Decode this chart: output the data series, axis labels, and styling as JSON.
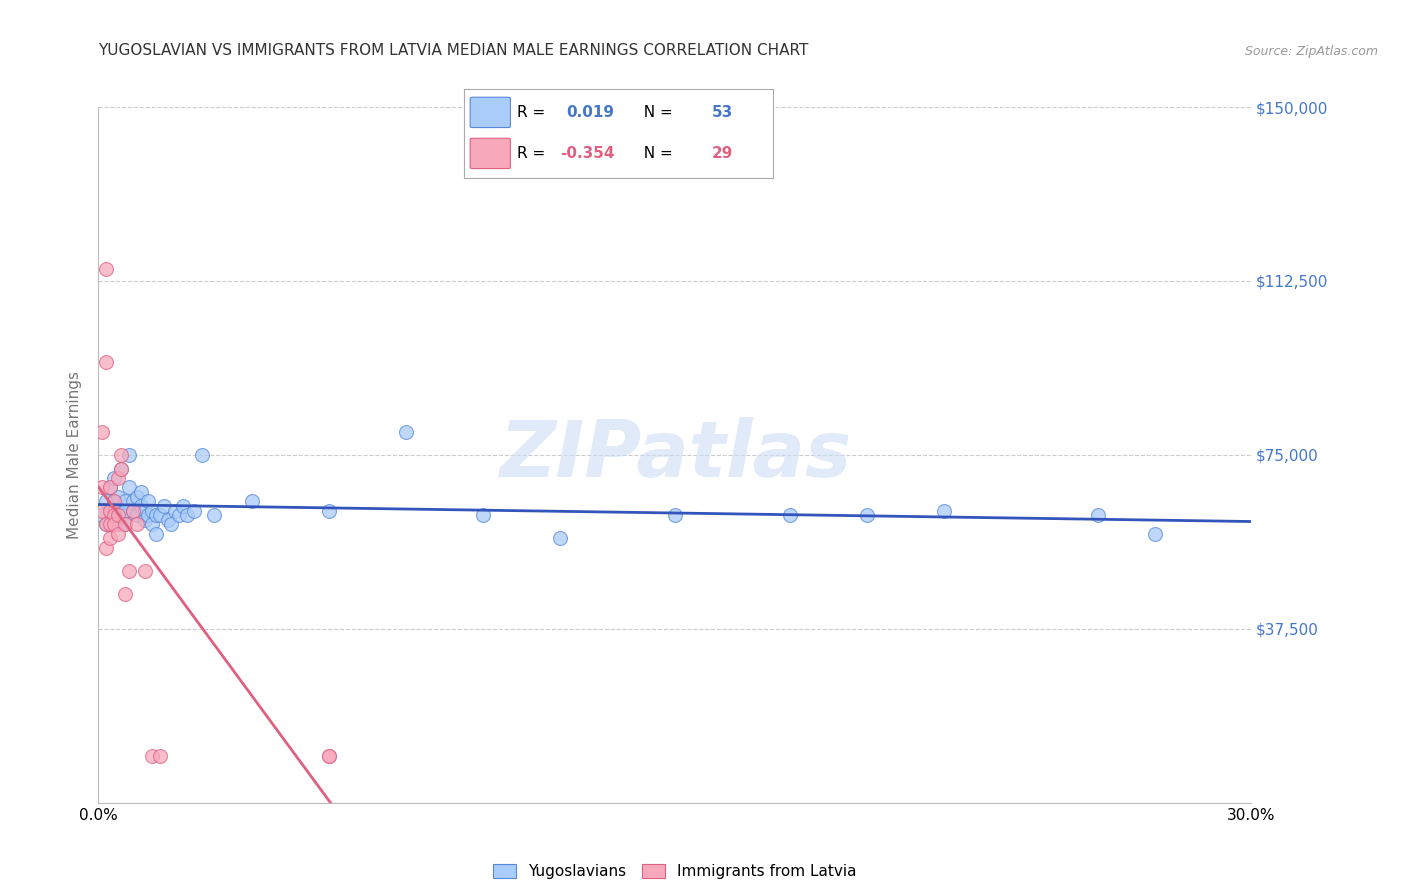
{
  "title": "YUGOSLAVIAN VS IMMIGRANTS FROM LATVIA MEDIAN MALE EARNINGS CORRELATION CHART",
  "source": "Source: ZipAtlas.com",
  "ylabel": "Median Male Earnings",
  "watermark": "ZIPatlas",
  "y_ticks": [
    0,
    37500,
    75000,
    112500,
    150000
  ],
  "y_tick_labels": [
    "",
    "$37,500",
    "$75,000",
    "$112,500",
    "$150,000"
  ],
  "x_lim": [
    0.0,
    0.3
  ],
  "y_lim": [
    0,
    150000
  ],
  "blue_fill": "#aaccf8",
  "blue_edge": "#5588dd",
  "pink_fill": "#f8a8bb",
  "pink_edge": "#e06080",
  "blue_line_color": "#3355bb",
  "pink_line_color": "#e06080",
  "legend_blue_R": "0.019",
  "legend_blue_N": "53",
  "legend_pink_R": "-0.354",
  "legend_pink_N": "29",
  "grid_color": "#cccccc",
  "title_color": "#333333",
  "axis_label_color": "#777777",
  "tick_label_color": "#4477cc",
  "blue_scatter_x": [
    0.001,
    0.002,
    0.002,
    0.003,
    0.003,
    0.004,
    0.004,
    0.005,
    0.005,
    0.005,
    0.006,
    0.006,
    0.007,
    0.007,
    0.007,
    0.008,
    0.008,
    0.009,
    0.009,
    0.01,
    0.01,
    0.011,
    0.011,
    0.012,
    0.012,
    0.013,
    0.013,
    0.014,
    0.014,
    0.015,
    0.015,
    0.016,
    0.017,
    0.018,
    0.019,
    0.02,
    0.021,
    0.022,
    0.023,
    0.025,
    0.027,
    0.03,
    0.04,
    0.06,
    0.08,
    0.1,
    0.12,
    0.15,
    0.18,
    0.2,
    0.22,
    0.26,
    0.275
  ],
  "blue_scatter_y": [
    62000,
    60000,
    65000,
    63000,
    68000,
    65000,
    70000,
    60000,
    63000,
    66000,
    62000,
    72000,
    65000,
    63000,
    60000,
    75000,
    68000,
    65000,
    63000,
    62000,
    66000,
    64000,
    67000,
    63000,
    61000,
    65000,
    62000,
    63000,
    60000,
    62000,
    58000,
    62000,
    64000,
    61000,
    60000,
    63000,
    62000,
    64000,
    62000,
    63000,
    75000,
    62000,
    65000,
    63000,
    80000,
    62000,
    57000,
    62000,
    62000,
    62000,
    63000,
    62000,
    58000
  ],
  "pink_scatter_x": [
    0.001,
    0.001,
    0.001,
    0.002,
    0.002,
    0.002,
    0.002,
    0.003,
    0.003,
    0.003,
    0.003,
    0.004,
    0.004,
    0.004,
    0.005,
    0.005,
    0.005,
    0.006,
    0.006,
    0.007,
    0.007,
    0.008,
    0.009,
    0.01,
    0.012,
    0.014,
    0.016,
    0.06,
    0.06
  ],
  "pink_scatter_y": [
    63000,
    68000,
    80000,
    95000,
    115000,
    60000,
    55000,
    68000,
    63000,
    60000,
    57000,
    65000,
    62000,
    60000,
    70000,
    62000,
    58000,
    75000,
    72000,
    60000,
    45000,
    50000,
    63000,
    60000,
    50000,
    10000,
    10000,
    10000,
    10000
  ]
}
